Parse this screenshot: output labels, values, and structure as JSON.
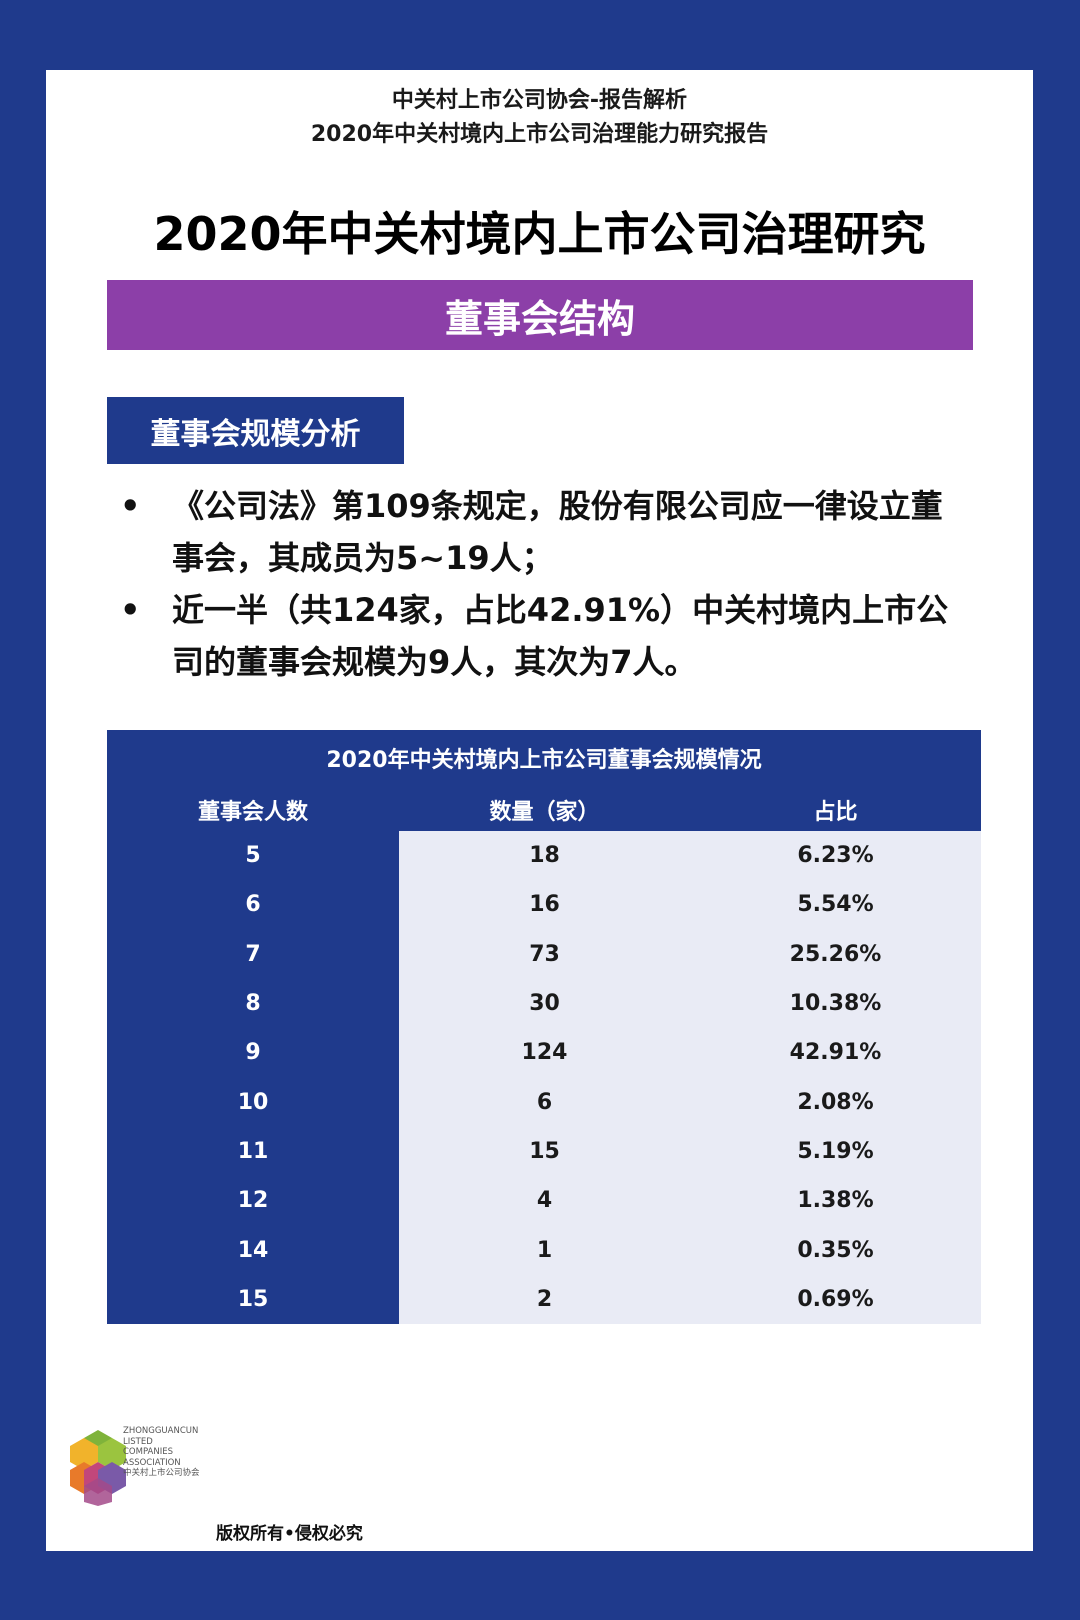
{
  "header": {
    "line1": "中关村上市公司协会-报告解析",
    "line2": "2020年中关村境内上市公司治理能力研究报告"
  },
  "title": "2020年中关村境内上市公司治理研究",
  "banner": "董事会结构",
  "section_tag": "董事会规模分析",
  "bullets": [
    {
      "dot": "•",
      "text": "《公司法》第109条规定，股份有限公司应一律设立董事会，其成员为5~19人；"
    },
    {
      "dot": "•",
      "text": "近一半（共124家，占比42.91%）中关村境内上市公司的董事会规模为9人，其次为7人。"
    }
  ],
  "table": {
    "caption": "2020年中关村境内上市公司董事会规模情况",
    "headers": [
      "董事会人数",
      "数量（家）",
      "占比"
    ],
    "rows": [
      [
        "5",
        "18",
        "6.23%"
      ],
      [
        "6",
        "16",
        "5.54%"
      ],
      [
        "7",
        "73",
        "25.26%"
      ],
      [
        "8",
        "30",
        "10.38%"
      ],
      [
        "9",
        "124",
        "42.91%"
      ],
      [
        "10",
        "6",
        "2.08%"
      ],
      [
        "11",
        "15",
        "5.19%"
      ],
      [
        "12",
        "4",
        "1.38%"
      ],
      [
        "14",
        "1",
        "0.35%"
      ],
      [
        "15",
        "2",
        "0.69%"
      ]
    ]
  },
  "logo": {
    "line1": "ZHONGGUANCUN",
    "line2": "LISTED",
    "line3": "COMPANIES",
    "line4": "ASSOCIATION",
    "line5": "中关村上市公司协会"
  },
  "copyright": "版权所有•侵权必究",
  "colors": {
    "frame": "#1f3a8c",
    "banner": "#8c3fa8",
    "cell_light": "#e9ebf5"
  }
}
